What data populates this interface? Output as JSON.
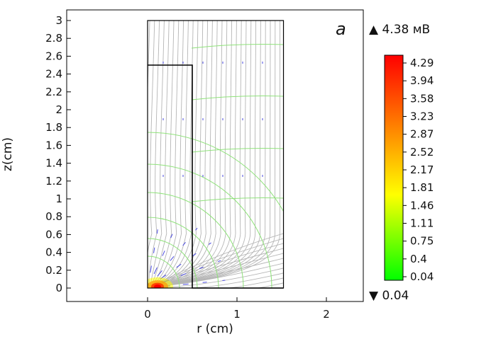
{
  "chart_data": {
    "type": "heatmap",
    "panel_label": "a",
    "xlabel": "r (cm)",
    "ylabel": "z(cm)",
    "xlim": [
      -0.9,
      2.4
    ],
    "ylim": [
      -0.15,
      3.05
    ],
    "x_ticks": [
      "0",
      "1",
      "2"
    ],
    "x_tick_values": [
      0,
      1,
      2
    ],
    "y_ticks": [
      "0",
      "0.2",
      "0.4",
      "0.6",
      "0.8",
      "1",
      "1.2",
      "1.4",
      "1.6",
      "1.8",
      "2",
      "2.2",
      "2.4",
      "2.6",
      "2.8",
      "3"
    ],
    "y_tick_values": [
      0,
      0.2,
      0.4,
      0.6,
      0.8,
      1,
      1.2,
      1.4,
      1.6,
      1.8,
      2,
      2.2,
      2.4,
      2.6,
      2.8,
      3
    ],
    "domain": {
      "r": [
        0,
        1.52
      ],
      "z": [
        0,
        3.0
      ]
    },
    "electrode": {
      "r": [
        0,
        0.5
      ],
      "z": [
        0,
        2.5
      ]
    },
    "colorbar": {
      "max_label": "▲ 4.38 мВ",
      "min_label": "▼ 0.04",
      "tick_labels": [
        "4.29",
        "3.94",
        "3.58",
        "3.23",
        "2.87",
        "2.52",
        "2.17",
        "1.81",
        "1.46",
        "1.11",
        "0.75",
        "0.4",
        "0.04"
      ],
      "tick_values": [
        4.29,
        3.94,
        3.58,
        3.23,
        2.87,
        2.52,
        2.17,
        1.81,
        1.46,
        1.11,
        0.75,
        0.4,
        0.04
      ],
      "colors": [
        "#ff0000",
        "#ff7a00",
        "#ffff00",
        "#00ff00"
      ]
    },
    "colors": {
      "contour": "#8fe27a",
      "streamline": "#b5b5b5",
      "arrow": "#4a4ae0",
      "frame": "#000000"
    }
  }
}
